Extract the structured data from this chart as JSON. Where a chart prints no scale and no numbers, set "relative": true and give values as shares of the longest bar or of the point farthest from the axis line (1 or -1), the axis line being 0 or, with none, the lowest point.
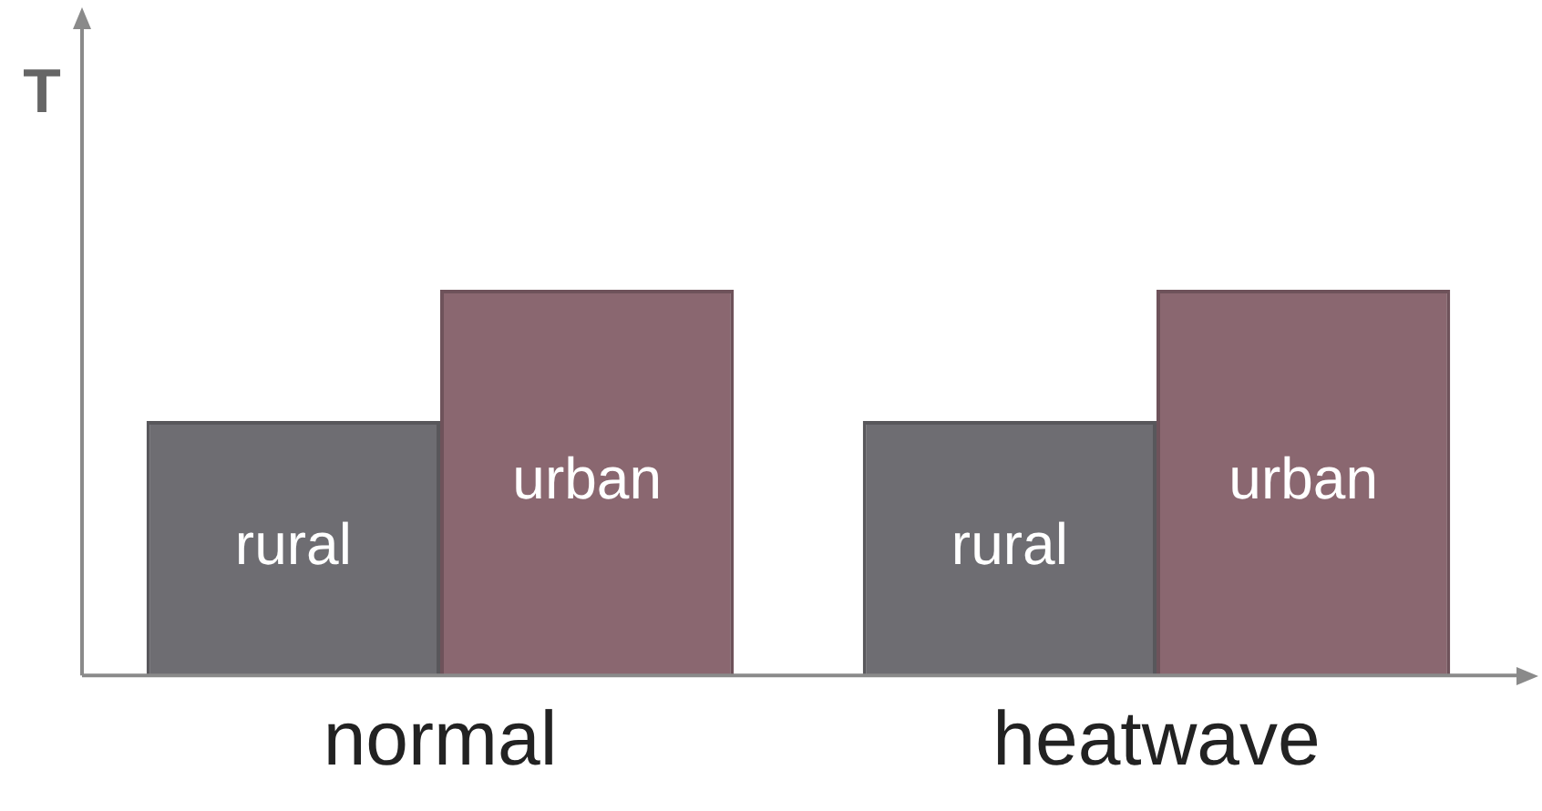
{
  "chart_data": {
    "type": "bar",
    "relative": true,
    "ylabel": "T",
    "categories": [
      "normal",
      "heatwave"
    ],
    "legend": false,
    "grid": false,
    "series": [
      {
        "name": "rural",
        "color": "#6e6d72",
        "values": [
          0.66,
          0.66
        ]
      },
      {
        "name": "urban",
        "color": "#8a6770",
        "values": [
          1,
          1
        ]
      }
    ]
  }
}
